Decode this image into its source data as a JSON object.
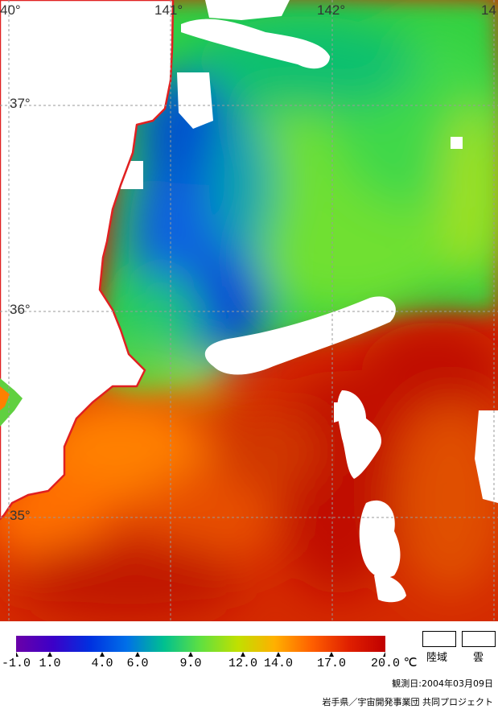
{
  "map": {
    "longitude_labels": [
      "40°",
      "141°",
      "142°",
      "14"
    ],
    "latitude_labels": [
      "37°",
      "36°",
      "35°"
    ],
    "colors": {
      "land": "#ffffff",
      "cloud": "#ffffff",
      "coastline": "#e02020",
      "grid": "#9a9a9a"
    }
  },
  "colorbar": {
    "tick_labels": [
      "-1.0",
      "1.0",
      "4.0",
      "6.0",
      "9.0",
      "12.0",
      "14.0",
      "17.0",
      "20.0"
    ],
    "unit": "℃",
    "colors": [
      "#6a00a8",
      "#3c00c8",
      "#0030e0",
      "#0070e8",
      "#00c090",
      "#60e040",
      "#c0e000",
      "#ffb000",
      "#ff6000",
      "#e02000",
      "#c00000"
    ]
  },
  "legend": {
    "land_label": "陸域",
    "cloud_label": "雲"
  },
  "footer": {
    "observation_date": "観測日:2004年03月09日",
    "credit": "岩手県／宇宙開発事業団 共同プロジェクト"
  }
}
